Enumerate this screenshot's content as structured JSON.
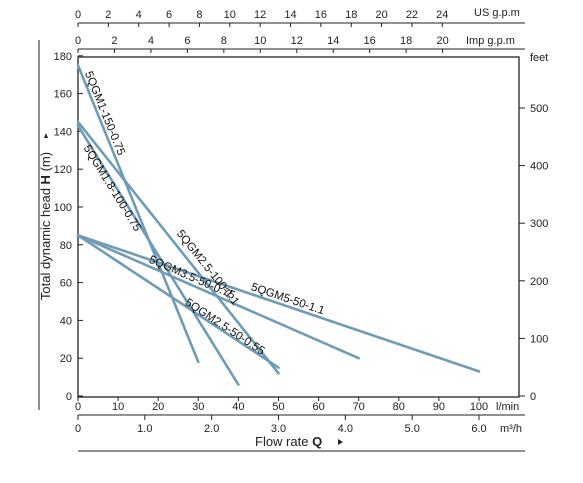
{
  "chart_data": {
    "type": "line",
    "ylabel_prefix": "Total dynamic head ",
    "ylabel_bold": "H",
    "ylabel_unit": " (m)",
    "xlabel_prefix": "Flow rate ",
    "xlabel_bold": "Q",
    "x_lmin": {
      "unit": "l/min",
      "ticks": [
        0,
        10,
        20,
        30,
        40,
        50,
        60,
        70,
        80,
        90,
        100
      ],
      "range": [
        0,
        110
      ]
    },
    "x_m3h": {
      "unit": "m³/h",
      "tick_labels": [
        "0",
        "1.0",
        "2.0",
        "3.0",
        "4.0",
        "5.0",
        "6.0"
      ],
      "tick_values": [
        0,
        1,
        2,
        3,
        4,
        5,
        6
      ]
    },
    "x_usgpm": {
      "unit": "US g.p.m",
      "ticks": [
        0,
        2,
        4,
        6,
        8,
        10,
        12,
        14,
        16,
        18,
        20,
        22,
        24
      ]
    },
    "x_impgpm": {
      "unit": "Imp g.p.m",
      "ticks": [
        0,
        2,
        4,
        6,
        8,
        10,
        12,
        14,
        16,
        18,
        20
      ]
    },
    "y_m": {
      "ticks": [
        0,
        20,
        40,
        60,
        80,
        100,
        120,
        140,
        160,
        180
      ],
      "range": [
        0,
        180
      ]
    },
    "y_feet": {
      "unit": "feet",
      "ticks": [
        0,
        100,
        200,
        300,
        400,
        500
      ]
    },
    "series": [
      {
        "name": "5QGM1-150-0.75",
        "x": [
          0,
          30
        ],
        "y": [
          175,
          18
        ]
      },
      {
        "name": "5QGM2.5-100-1.1",
        "x": [
          0,
          50
        ],
        "y": [
          145,
          12
        ]
      },
      {
        "name": "5QGM1.8-100-0.75",
        "x": [
          0,
          40
        ],
        "y": [
          143,
          6
        ]
      },
      {
        "name": "5QGM2.5-50-0.55",
        "x": [
          0,
          50
        ],
        "y": [
          85,
          15
        ]
      },
      {
        "name": "5QGM3.5-50-0.75",
        "x": [
          0,
          70
        ],
        "y": [
          85,
          20
        ]
      },
      {
        "name": "5QGM5-50-1.1",
        "x": [
          0,
          100
        ],
        "y": [
          85,
          13
        ]
      }
    ],
    "grid": false,
    "colors": {
      "series": "#6e9cb6",
      "axes": "#222222"
    }
  }
}
